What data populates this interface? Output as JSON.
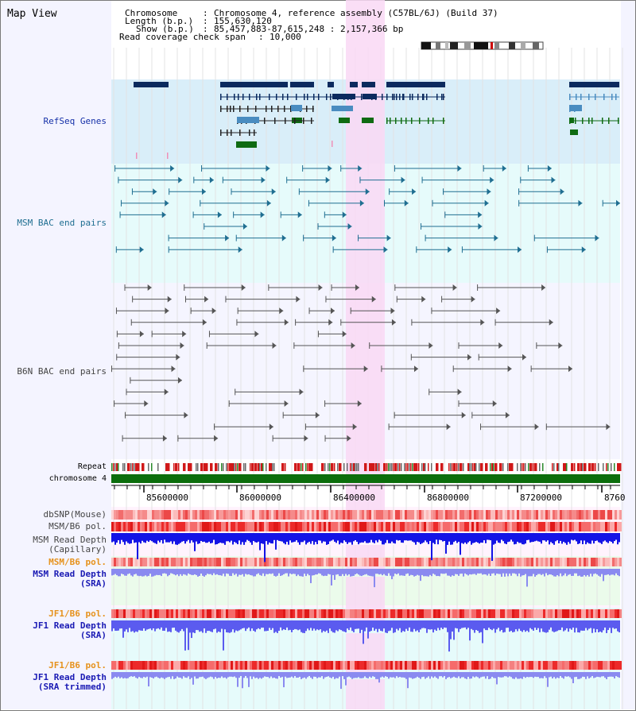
{
  "title": "Map View",
  "header": {
    "chromosome_key": "Chromosome",
    "chromosome_val": "Chromosome 4, reference assembly (C57BL/6J) (Build 37)",
    "length_key": "Length (b.p.)",
    "length_val": "155,630,120",
    "show_key": "Show (b.p.)",
    "show_val": "85,457,883-87,615,248 : 2,157,366 bp",
    "coverage_key": "Read coverage check span",
    "coverage_val": "10,000"
  },
  "tracks": {
    "refseq": "RefSeq Genes",
    "msm_bac": "MSM BAC end pairs",
    "b6n_bac": "B6N BAC end pairs",
    "repeat": "Repeat",
    "chromosome": "chromosome 4",
    "dbsnp": "dbSNP(Mouse)",
    "msm_b6_pol_1": "MSM/B6 pol.",
    "msm_read_depth_cap_1": "MSM Read Depth",
    "msm_read_depth_cap_2": "(Capillary)",
    "msm_b6_pol_2": "MSM/B6 pol.",
    "msm_read_depth_sra_1": "MSM Read Depth",
    "msm_read_depth_sra_2": "(SRA)",
    "jf1_b6_pol_1": "JF1/B6 pol.",
    "jf1_read_depth_sra_1": "JF1 Read Depth",
    "jf1_read_depth_sra_2": "(SRA)",
    "jf1_b6_pol_2": "JF1/B6 pol.",
    "jf1_read_depth_trim_1": "JF1 Read Depth",
    "jf1_read_depth_trim_2": "(SRA trimmed)"
  },
  "axis": {
    "ticks": [
      "85600000",
      "86000000",
      "86400000",
      "86800000",
      "87200000",
      "8760"
    ]
  },
  "colors": {
    "refseq_dark": "#0b2a5e",
    "refseq_mid": "#4a8cc0",
    "refseq_green": "#0f6b12",
    "msm_bac": "#1f6e91",
    "b6n_bac": "#555555",
    "highlight": "#f9d8f4",
    "refseq_bg": "#d9eef9",
    "bac_bg": "#e6fbfb",
    "chromosome": "#0c6e0c",
    "depth_blue": "#1414e6",
    "depth_light": "#8a8af0"
  }
}
